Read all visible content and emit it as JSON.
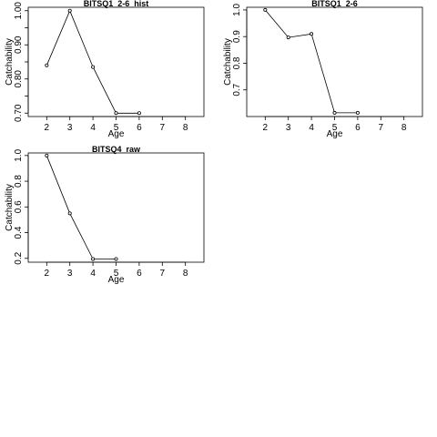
{
  "chart_data": [
    {
      "type": "line",
      "title": "BITSQ1_2-6_hist",
      "xlabel": "Age",
      "ylabel": "Catchability",
      "xlim": [
        1.2,
        8.8
      ],
      "ylim": [
        0.69,
        1.01
      ],
      "x_ticks": [
        2,
        3,
        4,
        5,
        6,
        7,
        8
      ],
      "y_ticks": [
        0.7,
        0.75,
        0.8,
        0.85,
        0.9,
        0.95,
        1.0
      ],
      "y_tick_labels": [
        "0.70",
        "",
        "0.80",
        "",
        "0.90",
        "",
        "1.00"
      ],
      "x": [
        2,
        3,
        4,
        5,
        6
      ],
      "y": [
        0.84,
        1.0,
        0.835,
        0.7,
        0.7
      ]
    },
    {
      "type": "line",
      "title": "BITSQ1_2-6",
      "xlabel": "Age",
      "ylabel": "Catchability",
      "xlim": [
        1.2,
        8.8
      ],
      "ylim": [
        0.6,
        1.01
      ],
      "x_ticks": [
        2,
        3,
        4,
        5,
        6,
        7,
        8
      ],
      "y_ticks": [
        0.7,
        0.8,
        0.9,
        1.0
      ],
      "y_tick_labels": [
        "0.7",
        "0.8",
        "0.9",
        "1.0"
      ],
      "x": [
        2,
        3,
        4,
        5,
        6
      ],
      "y": [
        1.0,
        0.897,
        0.91,
        0.614,
        0.614
      ]
    },
    {
      "type": "line",
      "title": "BITSQ4_raw",
      "xlabel": "Age",
      "ylabel": "Catchability",
      "xlim": [
        1.2,
        8.8
      ],
      "ylim": [
        0.17,
        1.02
      ],
      "x_ticks": [
        2,
        3,
        4,
        5,
        6,
        7,
        8
      ],
      "y_ticks": [
        0.2,
        0.4,
        0.6,
        0.8,
        1.0
      ],
      "y_tick_labels": [
        "0.2",
        "0.4",
        "0.6",
        "0.8",
        "1.0"
      ],
      "x": [
        2,
        3,
        4,
        5
      ],
      "y": [
        1.0,
        0.55,
        0.195,
        0.195
      ]
    }
  ]
}
